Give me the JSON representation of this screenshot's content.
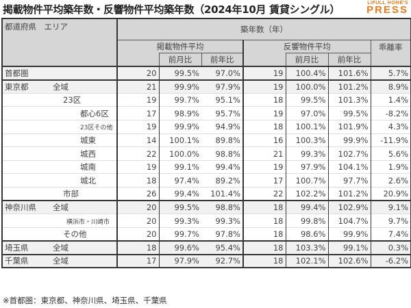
{
  "title": "掲載物件平均築年数・反響物件平均築年数（2024年10月 賃貸シングル）",
  "logo": {
    "line1": "LIFULL HOME'S",
    "line2": "PRESS",
    "color": "#f07a1a"
  },
  "header": {
    "area": "都道府県　エリア",
    "group": "築年数（年）",
    "listed": "掲載物件平均",
    "response": "反響物件平均",
    "gap": "乖離率",
    "mom": "前月比",
    "yoy": "前年比"
  },
  "rows": [
    {
      "pref": "首都圏",
      "area": "",
      "indent": 0,
      "shade": true,
      "grp": true,
      "vals": [
        "20",
        "99.5%",
        "97.0%",
        "19",
        "100.4%",
        "101.6%",
        "5.7%"
      ]
    },
    {
      "pref": "東京都",
      "area": "全域",
      "indent": 0,
      "shade": true,
      "grp": true,
      "vals": [
        "21",
        "99.9%",
        "97.9%",
        "19",
        "100.0%",
        "101.2%",
        "8.9%"
      ]
    },
    {
      "pref": "",
      "area": "23区",
      "indent": 1,
      "vals": [
        "19",
        "99.7%",
        "95.1%",
        "18",
        "99.5%",
        "101.3%",
        "1.4%"
      ]
    },
    {
      "pref": "",
      "area": "都心6区",
      "indent": 2,
      "vals": [
        "17",
        "98.9%",
        "95.7%",
        "19",
        "97.0%",
        "99.5%",
        "-8.2%"
      ]
    },
    {
      "pref": "",
      "area": "23区その他",
      "indent": 2,
      "small": true,
      "vals": [
        "19",
        "99.9%",
        "94.9%",
        "18",
        "100.1%",
        "101.9%",
        "4.3%"
      ]
    },
    {
      "pref": "",
      "area": "城東",
      "indent": 2,
      "vals": [
        "14",
        "100.1%",
        "89.8%",
        "16",
        "100.3%",
        "99.9%",
        "-11.9%"
      ]
    },
    {
      "pref": "",
      "area": "城西",
      "indent": 2,
      "vals": [
        "22",
        "100.0%",
        "98.8%",
        "21",
        "99.3%",
        "102.7%",
        "5.6%"
      ]
    },
    {
      "pref": "",
      "area": "城南",
      "indent": 2,
      "vals": [
        "19",
        "99.1%",
        "99.4%",
        "19",
        "97.9%",
        "104.1%",
        "1.9%"
      ]
    },
    {
      "pref": "",
      "area": "城北",
      "indent": 2,
      "vals": [
        "18",
        "97.4%",
        "89.2%",
        "17",
        "100.7%",
        "97.7%",
        "2.6%"
      ]
    },
    {
      "pref": "",
      "area": "市部",
      "indent": 1,
      "vals": [
        "26",
        "99.4%",
        "101.4%",
        "22",
        "102.2%",
        "101.2%",
        "20.9%"
      ]
    },
    {
      "pref": "神奈川県",
      "area": "全域",
      "indent": 0,
      "shade": true,
      "grp": true,
      "vals": [
        "20",
        "99.5%",
        "98.8%",
        "18",
        "99.4%",
        "102.9%",
        "9.1%"
      ]
    },
    {
      "pref": "",
      "area": "横浜市・川崎市",
      "indent": 3,
      "small": true,
      "vals": [
        "20",
        "99.3%",
        "99.3%",
        "18",
        "99.8%",
        "104.7%",
        "9.7%"
      ]
    },
    {
      "pref": "",
      "area": "その他",
      "indent": 1,
      "vals": [
        "20",
        "99.7%",
        "97.8%",
        "18",
        "98.6%",
        "99.9%",
        "7.4%"
      ]
    },
    {
      "pref": "埼玉県",
      "area": "全域",
      "indent": 0,
      "shade": true,
      "grp": true,
      "vals": [
        "18",
        "99.6%",
        "95.4%",
        "18",
        "103.3%",
        "99.1%",
        "0.3%"
      ]
    },
    {
      "pref": "千葉県",
      "area": "全域",
      "indent": 0,
      "shade": true,
      "grp": true,
      "vals": [
        "17",
        "97.9%",
        "92.7%",
        "18",
        "102.1%",
        "102.6%",
        "-6.2%"
      ]
    }
  ],
  "note": "※首都圏：東京都、神奈川県、埼玉県、千葉県"
}
